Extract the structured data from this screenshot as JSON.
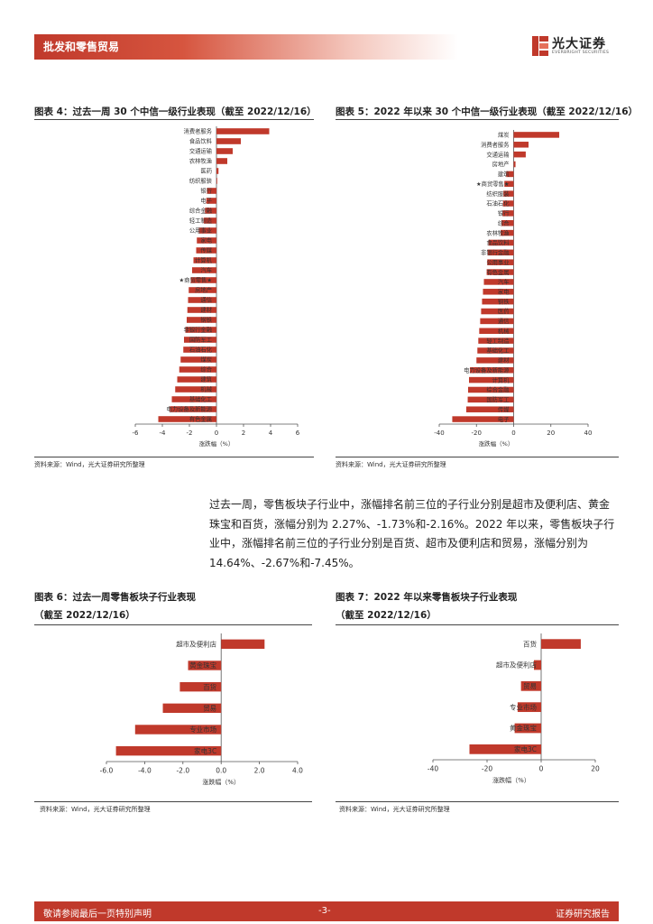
{
  "header": {
    "title": "批发和零售贸易"
  },
  "logo": {
    "name_cn": "光大证券",
    "name_en": "EVERBRIGHT SECURITIES"
  },
  "fig4": {
    "title": "图表 4：过去一周 30 个中信一级行业表现（截至 2022/12/16）",
    "source": "资料来源：Wind，光大证券研究所整理",
    "chart_data": {
      "type": "bar",
      "orientation": "horizontal",
      "categories": [
        "消费者服务",
        "食品饮料",
        "交通运输",
        "农林牧渔",
        "医药",
        "纺织服装",
        "银行",
        "电子",
        "综合金融",
        "轻工制造",
        "公用事业",
        "家电",
        "传媒",
        "计算机",
        "汽车",
        "★商贸零售★",
        "房地产",
        "通信",
        "建材",
        "钢铁",
        "非银行金融",
        "国防军工",
        "石油石化",
        "煤炭",
        "综合",
        "建筑",
        "机械",
        "基础化工",
        "电力设备及新能源",
        "有色金属"
      ],
      "values": [
        3.9,
        1.8,
        1.2,
        0.8,
        0.15,
        0.05,
        -0.7,
        -0.75,
        -0.85,
        -0.95,
        -1.3,
        -1.45,
        -1.5,
        -1.7,
        -1.8,
        -1.9,
        -2.05,
        -2.1,
        -2.15,
        -2.2,
        -2.3,
        -2.4,
        -2.45,
        -2.65,
        -2.75,
        -2.9,
        -3.05,
        -3.3,
        -3.45,
        -4.3
      ],
      "xlabel": "涨跌幅（%）",
      "xlim": [
        -6,
        6
      ],
      "xticks": [
        "-6",
        "-4",
        "-2",
        "0",
        "2",
        "4",
        "6"
      ],
      "color": "#c0392b"
    }
  },
  "fig5": {
    "title": "图表 5：2022 年以来 30 个中信一级行业表现（截至 2022/12/16）",
    "source": "资料来源：Wind，光大证券研究所整理",
    "chart_data": {
      "type": "bar",
      "orientation": "horizontal",
      "categories": [
        "煤炭",
        "消费者服务",
        "交通运输",
        "房地产",
        "建筑",
        "★商贸零售★",
        "纺织服装",
        "石油石化",
        "银行",
        "综合",
        "农林牧渔",
        "食品饮料",
        "非银行金融",
        "公用事业",
        "有色金属",
        "汽车",
        "家电",
        "钢铁",
        "医药",
        "通信",
        "机械",
        "轻工制造",
        "基础化工",
        "建材",
        "电力设备及新能源",
        "计算机",
        "综合金融",
        "国防军工",
        "传媒",
        "电子"
      ],
      "values": [
        24.5,
        8,
        6.5,
        1,
        -4,
        -5,
        -5.5,
        -5.7,
        -6,
        -6.5,
        -7,
        -13.5,
        -14,
        -14.2,
        -14.5,
        -16,
        -16.5,
        -17,
        -17.5,
        -18,
        -18.5,
        -19,
        -19.5,
        -20,
        -23.5,
        -24,
        -24.5,
        -24.7,
        -25.5,
        -33
      ],
      "xlabel": "涨跌幅（%）",
      "xlim": [
        -40,
        40
      ],
      "xticks": [
        "-40",
        "-20",
        "0",
        "20",
        "40"
      ],
      "color": "#c0392b"
    }
  },
  "paragraph": {
    "text": "过去一周，零售板块子行业中，涨幅排名前三位的子行业分别是超市及便利店、黄金珠宝和百货，涨幅分别为 2.27%、-1.73%和-2.16%。2022 年以来，零售板块子行业中，涨幅排名前三位的子行业分别是百货、超市及便利店和贸易，涨幅分别为 14.64%、-2.67%和-7.45%。"
  },
  "fig6": {
    "title": "图表 6：过去一周零售板块子行业表现",
    "title_line2": "（截至 2022/12/16）",
    "source": "资料来源：Wind，光大证券研究所整理",
    "chart_data": {
      "type": "bar",
      "orientation": "horizontal",
      "categories": [
        "超市及便利店",
        "黄金珠宝",
        "百货",
        "贸易",
        "专业市场",
        "家电3C"
      ],
      "values": [
        2.27,
        -1.73,
        -2.16,
        -3.05,
        -4.5,
        -5.5
      ],
      "xlabel": "涨跌幅（%）",
      "xlim": [
        -6,
        4
      ],
      "xticks": [
        "-6.0",
        "-4.0",
        "-2.0",
        "0.0",
        "2.0",
        "4.0"
      ],
      "color": "#c0392b"
    }
  },
  "fig7": {
    "title": "图表 7：2022 年以来零售板块子行业表现",
    "title_line2": "（截至 2022/12/16）",
    "source": "资料来源：Wind，光大证券研究所整理",
    "chart_data": {
      "type": "bar",
      "orientation": "horizontal",
      "categories": [
        "百货",
        "超市及便利店",
        "贸易",
        "专业市场",
        "黄金珠宝",
        "家电3C"
      ],
      "values": [
        14.64,
        -2.67,
        -7.45,
        -8.7,
        -9.8,
        -26.5
      ],
      "xlabel": "涨跌幅（%）",
      "xlim": [
        -40,
        20
      ],
      "xticks": [
        "-40",
        "-20",
        "0",
        "20"
      ],
      "color": "#c0392b"
    }
  },
  "footer": {
    "left": "敬请参阅最后一页特别声明",
    "center": "-3-",
    "right": "证券研究报告"
  }
}
